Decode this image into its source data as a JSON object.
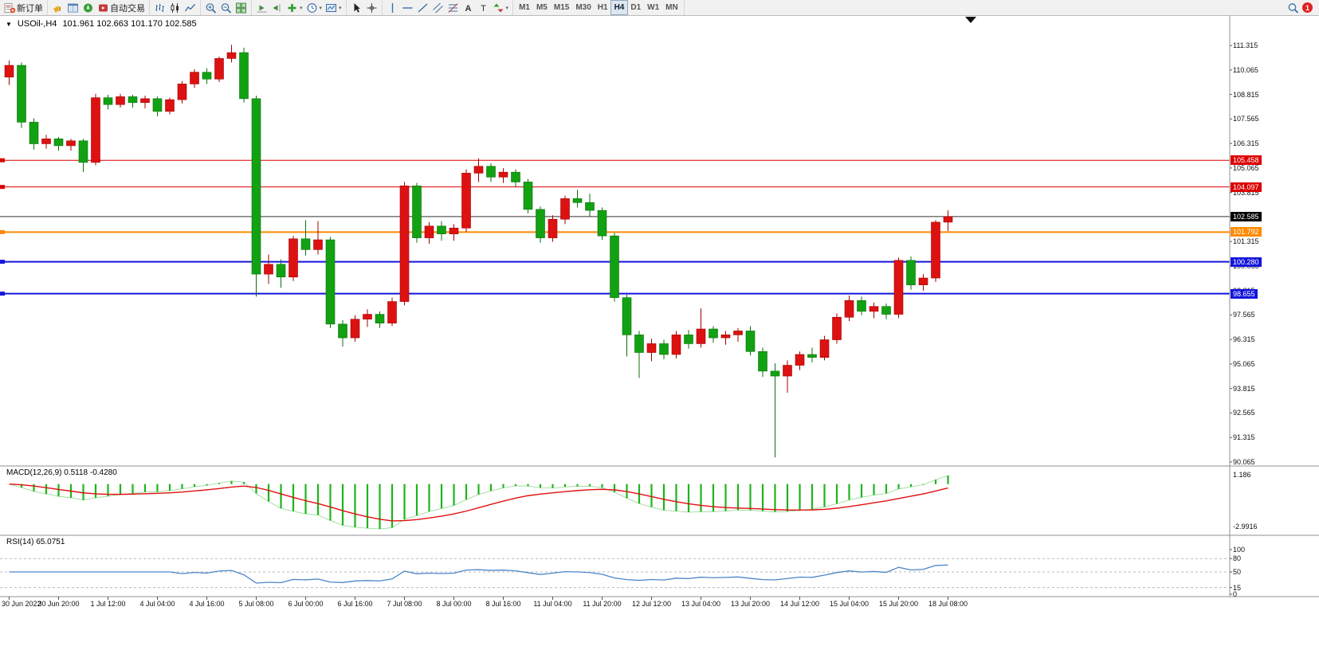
{
  "toolbar": {
    "groups": [
      [
        {
          "name": "new-order-button",
          "icon": "new-order-icon",
          "label": "新订单"
        }
      ],
      [
        {
          "name": "alerts-button",
          "icon": "megaphone-icon"
        },
        {
          "name": "market-watch-button",
          "icon": "market-watch-icon"
        },
        {
          "name": "navigator-button",
          "icon": "navigator-icon"
        },
        {
          "name": "autotrading-button",
          "icon": "autotrading-icon",
          "label": "自动交易"
        }
      ],
      [
        {
          "name": "bars-chart-button",
          "icon": "bar-chart-icon"
        },
        {
          "name": "candlestick-chart-button",
          "icon": "candlestick-icon"
        },
        {
          "name": "line-chart-button",
          "icon": "line-chart-icon"
        }
      ],
      [
        {
          "name": "zoom-in-button",
          "icon": "zoom-in-icon"
        },
        {
          "name": "zoom-out-button",
          "icon": "zoom-out-icon"
        },
        {
          "name": "tile-windows-button",
          "icon": "tile-windows-icon"
        }
      ],
      [
        {
          "name": "auto-scroll-button",
          "icon": "auto-scroll-icon"
        },
        {
          "name": "chart-shift-button",
          "icon": "chart-shift-icon"
        },
        {
          "name": "indicators-button",
          "icon": "indicators-plus-icon",
          "dropdown": true
        },
        {
          "name": "periods-button",
          "icon": "clock-icon",
          "dropdown": true
        },
        {
          "name": "templates-button",
          "icon": "template-icon",
          "dropdown": true
        }
      ],
      [
        {
          "name": "cursor-button",
          "icon": "cursor-icon"
        },
        {
          "name": "crosshair-button",
          "icon": "crosshair-icon"
        }
      ],
      [
        {
          "name": "vertical-line-button",
          "icon": "vertical-line-icon"
        },
        {
          "name": "horizontal-line-button",
          "icon": "horizontal-line-icon"
        },
        {
          "name": "trendline-button",
          "icon": "trendline-icon"
        },
        {
          "name": "channel-button",
          "icon": "channel-icon"
        },
        {
          "name": "fibonacci-button",
          "icon": "fibonacci-icon"
        },
        {
          "name": "text-button",
          "icon": "text-a-icon"
        },
        {
          "name": "label-button",
          "icon": "label-t-icon"
        },
        {
          "name": "arrows-button",
          "icon": "arrows-icon",
          "dropdown": true
        }
      ]
    ],
    "timeframes": [
      "M1",
      "M5",
      "M15",
      "M30",
      "H1",
      "H4",
      "D1",
      "W1",
      "MN"
    ],
    "active_timeframe": "H4",
    "right": [
      {
        "name": "search-button",
        "icon": "search-icon"
      }
    ],
    "notification_count": "1"
  },
  "chart": {
    "symbol_header": "USOil-,H4",
    "ohlc_text": "101.961 102.663 101.170 102.585",
    "price_axis": [
      "111.315",
      "110.065",
      "108.815",
      "107.565",
      "106.315",
      "105.065",
      "103.815",
      "102.565",
      "101.315",
      "100.065",
      "98.815",
      "97.565",
      "96.315",
      "95.065",
      "93.815",
      "92.565",
      "91.315",
      "90.065"
    ],
    "time_axis": [
      "30 Jun 2022",
      "30 Jun 20:00",
      "1 Jul 12:00",
      "4 Jul 04:00",
      "4 Jul 16:00",
      "5 Jul 08:00",
      "6 Jul 00:00",
      "6 Jul 16:00",
      "7 Jul 08:00",
      "8 Jul 00:00",
      "8 Jul 16:00",
      "11 Jul 04:00",
      "11 Jul 20:00",
      "12 Jul 12:00",
      "13 Jul 04:00",
      "13 Jul 20:00",
      "14 Jul 12:00",
      "15 Jul 04:00",
      "15 Jul 20:00",
      "18 Jul 08:00"
    ]
  },
  "macd": {
    "label": "MACD(12,26,9) 0.5118 -0.4280",
    "scale_top": "1.186",
    "scale_bottom": "-2.9916"
  },
  "rsi": {
    "label": "RSI(14) 65.0751",
    "levels": [
      "100",
      "80",
      "50",
      "15",
      "0"
    ]
  },
  "chart_data": {
    "type": "candlestick",
    "symbol": "USOil-",
    "timeframe": "H4",
    "ohlc": {
      "open": 101.961,
      "high": 102.663,
      "low": 101.17,
      "close": 102.585
    },
    "price_range": [
      90.065,
      111.315
    ],
    "bars_per_time_label": 4,
    "colors": {
      "up": "#dd1111",
      "up_border": "#a00000",
      "down": "#12a112",
      "down_border": "#0b700b",
      "background": "#ffffff"
    },
    "hlines": [
      {
        "price": 105.458,
        "label": "105.458",
        "color": "#dd0000",
        "width": 1
      },
      {
        "price": 104.097,
        "label": "104.097",
        "color": "#dd0000",
        "width": 1
      },
      {
        "price": 101.792,
        "label": "101.792",
        "color": "#ff8a00",
        "width": 2
      },
      {
        "price": 100.28,
        "label": "100.280",
        "color": "#1515dd",
        "width": 2
      },
      {
        "price": 98.655,
        "label": "98.655",
        "color": "#1515dd",
        "width": 2
      }
    ],
    "current_price": {
      "price": 102.585,
      "label": "102.585",
      "color": "#000000"
    },
    "indicators": [
      {
        "name": "MACD",
        "params": [
          12,
          26,
          9
        ],
        "values": [
          0.5118,
          -0.428
        ],
        "scale": [
          1.186,
          -2.9916
        ],
        "histogram_color": "#1db31d",
        "signal_color": "#e01010"
      },
      {
        "name": "RSI",
        "params": [
          14
        ],
        "value": 65.0751,
        "scale": [
          100,
          80,
          50,
          15,
          0
        ],
        "line_color": "#4a86c8"
      }
    ],
    "candles": [
      [
        109.7,
        110.55,
        109.3,
        110.3
      ],
      [
        110.3,
        110.45,
        107.1,
        107.4
      ],
      [
        107.4,
        107.6,
        106.0,
        106.3
      ],
      [
        106.3,
        106.75,
        106.05,
        106.55
      ],
      [
        106.55,
        106.65,
        105.95,
        106.2
      ],
      [
        106.2,
        106.55,
        105.95,
        106.45
      ],
      [
        106.45,
        106.55,
        104.85,
        105.35
      ],
      [
        105.35,
        108.85,
        105.2,
        108.65
      ],
      [
        108.65,
        108.8,
        108.05,
        108.3
      ],
      [
        108.3,
        108.85,
        108.15,
        108.7
      ],
      [
        108.7,
        108.8,
        108.15,
        108.4
      ],
      [
        108.4,
        108.75,
        108.1,
        108.6
      ],
      [
        108.6,
        108.7,
        107.7,
        107.95
      ],
      [
        107.95,
        108.65,
        107.8,
        108.55
      ],
      [
        108.55,
        109.5,
        108.35,
        109.35
      ],
      [
        109.35,
        110.1,
        109.15,
        109.95
      ],
      [
        109.95,
        110.15,
        109.35,
        109.6
      ],
      [
        109.6,
        110.75,
        109.45,
        110.65
      ],
      [
        110.65,
        111.35,
        110.45,
        110.95
      ],
      [
        110.95,
        111.2,
        108.4,
        108.6
      ],
      [
        108.6,
        108.75,
        98.5,
        99.65
      ],
      [
        99.65,
        100.65,
        99.15,
        100.15
      ],
      [
        100.15,
        100.4,
        98.95,
        99.5
      ],
      [
        99.5,
        101.6,
        99.3,
        101.45
      ],
      [
        101.45,
        102.4,
        100.6,
        100.9
      ],
      [
        100.9,
        102.35,
        100.65,
        101.4
      ],
      [
        101.4,
        101.55,
        96.9,
        97.1
      ],
      [
        97.1,
        97.3,
        95.95,
        96.4
      ],
      [
        96.4,
        97.55,
        96.2,
        97.35
      ],
      [
        97.35,
        97.85,
        96.95,
        97.6
      ],
      [
        97.6,
        97.75,
        96.9,
        97.15
      ],
      [
        97.15,
        98.45,
        97.0,
        98.25
      ],
      [
        98.25,
        104.35,
        98.05,
        104.15
      ],
      [
        104.15,
        104.3,
        101.25,
        101.5
      ],
      [
        101.5,
        102.3,
        101.2,
        102.1
      ],
      [
        102.1,
        102.35,
        101.35,
        101.7
      ],
      [
        101.7,
        102.2,
        101.35,
        102.0
      ],
      [
        102.0,
        105.0,
        101.8,
        104.8
      ],
      [
        104.8,
        105.55,
        104.35,
        105.15
      ],
      [
        105.15,
        105.3,
        104.35,
        104.6
      ],
      [
        104.6,
        105.05,
        104.3,
        104.85
      ],
      [
        104.85,
        105.0,
        104.1,
        104.35
      ],
      [
        104.35,
        104.5,
        102.75,
        102.95
      ],
      [
        102.95,
        103.1,
        101.25,
        101.5
      ],
      [
        101.5,
        102.65,
        101.3,
        102.45
      ],
      [
        102.45,
        103.65,
        102.2,
        103.5
      ],
      [
        103.5,
        103.95,
        103.05,
        103.3
      ],
      [
        103.3,
        103.75,
        102.6,
        102.9
      ],
      [
        102.9,
        103.05,
        101.4,
        101.6
      ],
      [
        101.6,
        101.75,
        98.25,
        98.45
      ],
      [
        98.45,
        98.6,
        95.45,
        96.55
      ],
      [
        96.55,
        96.75,
        94.35,
        95.65
      ],
      [
        95.65,
        96.35,
        95.2,
        96.1
      ],
      [
        96.1,
        96.3,
        95.3,
        95.55
      ],
      [
        95.55,
        96.75,
        95.35,
        96.55
      ],
      [
        96.55,
        96.8,
        95.85,
        96.1
      ],
      [
        96.1,
        97.9,
        95.9,
        96.85
      ],
      [
        96.85,
        97.0,
        96.15,
        96.4
      ],
      [
        96.4,
        96.75,
        96.05,
        96.55
      ],
      [
        96.55,
        96.9,
        96.2,
        96.75
      ],
      [
        96.75,
        97.0,
        95.5,
        95.7
      ],
      [
        95.7,
        95.9,
        94.4,
        94.7
      ],
      [
        94.7,
        95.1,
        90.3,
        94.45
      ],
      [
        94.45,
        95.25,
        93.6,
        95.0
      ],
      [
        95.0,
        95.7,
        94.75,
        95.55
      ],
      [
        95.55,
        95.9,
        95.15,
        95.4
      ],
      [
        95.4,
        96.5,
        95.25,
        96.3
      ],
      [
        96.3,
        97.65,
        96.1,
        97.45
      ],
      [
        97.45,
        98.55,
        97.25,
        98.3
      ],
      [
        98.3,
        98.5,
        97.55,
        97.75
      ],
      [
        97.75,
        98.2,
        97.4,
        98.0
      ],
      [
        98.0,
        98.15,
        97.35,
        97.6
      ],
      [
        97.6,
        100.5,
        97.4,
        100.35
      ],
      [
        100.35,
        100.55,
        98.85,
        99.1
      ],
      [
        99.1,
        99.65,
        98.8,
        99.45
      ],
      [
        99.45,
        102.4,
        99.25,
        102.3
      ],
      [
        102.3,
        102.9,
        101.85,
        102.585
      ]
    ]
  }
}
